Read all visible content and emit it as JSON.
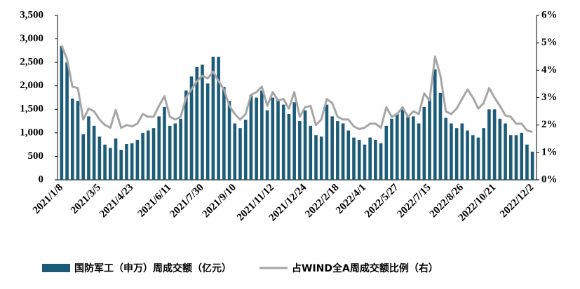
{
  "chart_data": {
    "type": "bar-line",
    "categories": [
      "2021/1/8",
      null,
      null,
      null,
      null,
      null,
      null,
      "2021/3/5",
      null,
      null,
      null,
      null,
      null,
      "2021/4/23",
      null,
      null,
      null,
      null,
      null,
      null,
      "2021/6/11",
      null,
      null,
      null,
      null,
      null,
      "2021/7/30",
      null,
      null,
      null,
      null,
      null,
      "2021/9/10",
      null,
      null,
      null,
      null,
      null,
      null,
      "2021/11/12",
      null,
      null,
      null,
      null,
      null,
      "2021/12/24",
      null,
      null,
      null,
      null,
      null,
      "2022/2/18",
      null,
      null,
      null,
      null,
      "2022/4/1",
      null,
      null,
      null,
      null,
      null,
      "2022/5/27",
      null,
      null,
      null,
      null,
      null,
      "2022/7/15",
      null,
      null,
      null,
      null,
      null,
      "2022/8/26",
      null,
      null,
      null,
      null,
      null,
      "2022/10/21",
      null,
      null,
      null,
      null,
      null,
      null,
      "2022/12/2"
    ],
    "series": [
      {
        "name": "国防军工（申万）周成交额（亿元）",
        "color": "#1d5c78",
        "type": "bar",
        "values": [
          2850,
          2500,
          1730,
          1680,
          970,
          1350,
          1150,
          920,
          750,
          680,
          880,
          640,
          760,
          780,
          850,
          1000,
          1050,
          1100,
          1350,
          1550,
          1150,
          1200,
          1300,
          1900,
          2200,
          2400,
          2450,
          2050,
          2620,
          2620,
          1980,
          1680,
          1200,
          1100,
          1280,
          1800,
          1750,
          1900,
          1480,
          1750,
          1700,
          1600,
          1400,
          1650,
          1250,
          1480,
          1150,
          950,
          920,
          1600,
          1350,
          1250,
          1200,
          1050,
          900,
          850,
          750,
          900,
          850,
          780,
          1150,
          1300,
          1400,
          1500,
          1350,
          1350,
          1200,
          1550,
          1750,
          2350,
          1850,
          1320,
          1200,
          1100,
          1200,
          1050,
          950,
          900,
          1100,
          1500,
          1500,
          1300,
          1200,
          950,
          950,
          1000,
          750,
          600
        ]
      },
      {
        "name": "占WIND全A周成交额比例（右）",
        "color": "#a6a6a6",
        "type": "line",
        "axis": "y2",
        "values": [
          4.9,
          4.4,
          3.4,
          3.35,
          2.2,
          2.6,
          2.5,
          2.2,
          2.0,
          1.9,
          2.55,
          1.9,
          2.0,
          1.95,
          2.05,
          2.4,
          2.3,
          2.3,
          2.7,
          3.05,
          2.3,
          2.2,
          2.3,
          3.0,
          3.3,
          3.6,
          3.8,
          3.7,
          3.95,
          3.6,
          3.3,
          2.7,
          2.4,
          2.2,
          2.4,
          3.1,
          3.2,
          3.4,
          2.7,
          3.2,
          2.9,
          2.95,
          2.6,
          3.2,
          2.3,
          2.65,
          2.7,
          2.0,
          2.2,
          2.95,
          2.8,
          2.3,
          2.2,
          2.2,
          1.95,
          1.85,
          1.9,
          2.05,
          2.05,
          1.9,
          2.65,
          2.3,
          2.4,
          2.65,
          2.3,
          2.5,
          2.4,
          3.15,
          2.9,
          4.5,
          3.8,
          2.5,
          2.4,
          2.6,
          2.95,
          3.3,
          3.0,
          2.6,
          2.8,
          3.35,
          3.0,
          2.7,
          2.35,
          2.3,
          2.05,
          2.05,
          1.8,
          1.75
        ]
      }
    ],
    "ylim": [
      0,
      3500
    ],
    "yticks": [
      0,
      500,
      {
        "value": 1000,
        "label": "1,000"
      },
      {
        "value": 1500,
        "label": "1,500"
      },
      {
        "value": 2000,
        "label": "2,000"
      },
      {
        "value": 2500,
        "label": "2,500"
      },
      {
        "value": 3000,
        "label": "3,000"
      },
      {
        "value": 3500,
        "label": "3,500"
      }
    ],
    "y2lim": [
      0,
      6
    ],
    "y2ticks": [
      {
        "value": 0,
        "label": "0%"
      },
      {
        "value": 1,
        "label": "1%"
      },
      {
        "value": 2,
        "label": "2%"
      },
      {
        "value": 3,
        "label": "3%"
      },
      {
        "value": 4,
        "label": "4%"
      },
      {
        "value": 5,
        "label": "5%"
      },
      {
        "value": 6,
        "label": "6%"
      }
    ],
    "legend": "bottom"
  }
}
